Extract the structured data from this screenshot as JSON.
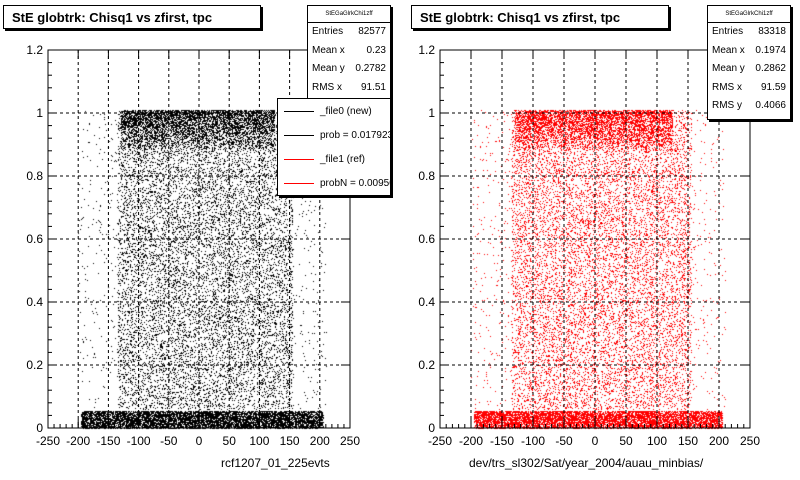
{
  "chart_data": [
    {
      "type": "scatter",
      "title": "StE globtrk: Chisq1 vs zfirst, tpc",
      "xlabel": "rcf1207_01_225evts",
      "ylabel": "",
      "xlim": [
        -250,
        250
      ],
      "ylim": [
        0,
        1.2
      ],
      "x_ticks": [
        "-250",
        "-200",
        "-150",
        "-100",
        "-50",
        "0",
        "50",
        "100",
        "150",
        "200",
        "250"
      ],
      "y_ticks": [
        "0",
        "0.2",
        "0.4",
        "0.6",
        "0.8",
        "1",
        "1.2"
      ],
      "grid": true,
      "marker_color": "#000000",
      "points": [
        [
          -180,
          0.03
        ],
        [
          -120,
          0.5
        ],
        [
          -50,
          0.98
        ],
        [
          0,
          0.7
        ],
        [
          60,
          0.35
        ],
        [
          120,
          0.9
        ],
        [
          180,
          0.02
        ]
      ],
      "stats": {
        "name": "StEGaGlrkChi1zff",
        "rows": [
          {
            "label": "Entries",
            "value": "82577"
          },
          {
            "label": "Mean x",
            "value": "0.23"
          },
          {
            "label": "Mean y",
            "value": "0.2782"
          },
          {
            "label": "RMS x",
            "value": "91.51"
          }
        ]
      },
      "legend": [
        {
          "label": "_file0 (new)",
          "color": "#000000"
        },
        {
          "label": "prob = 0.017923",
          "color": "#000000"
        },
        {
          "label": "_file1 (ref)",
          "color": "#ff0000"
        },
        {
          "label": "probN = 0.009505",
          "color": "#ff0000"
        }
      ]
    },
    {
      "type": "scatter",
      "title": "StE globtrk: Chisq1 vs zfirst, tpc",
      "xlabel": "dev/trs_sl302/Sat/year_2004/auau_minbias/",
      "ylabel": "",
      "xlim": [
        -250,
        250
      ],
      "ylim": [
        0,
        1.2
      ],
      "x_ticks": [
        "-250",
        "-200",
        "-150",
        "-100",
        "-50",
        "0",
        "50",
        "100",
        "150",
        "200",
        "250"
      ],
      "y_ticks": [
        "0",
        "0.2",
        "0.4",
        "0.6",
        "0.8",
        "1",
        "1.2"
      ],
      "grid": true,
      "marker_color": "#ff0000",
      "points": [
        [
          -170,
          0.03
        ],
        [
          -110,
          0.45
        ],
        [
          -40,
          0.97
        ],
        [
          10,
          0.65
        ],
        [
          70,
          0.3
        ],
        [
          130,
          0.88
        ],
        [
          190,
          0.02
        ]
      ],
      "stats": {
        "name": "StEGaGlrkChi1zff",
        "rows": [
          {
            "label": "Entries",
            "value": "83318"
          },
          {
            "label": "Mean x",
            "value": "0.1974"
          },
          {
            "label": "Mean y",
            "value": "0.2862"
          },
          {
            "label": "RMS x",
            "value": "91.59"
          },
          {
            "label": "RMS y",
            "value": "0.4066"
          }
        ]
      }
    }
  ]
}
